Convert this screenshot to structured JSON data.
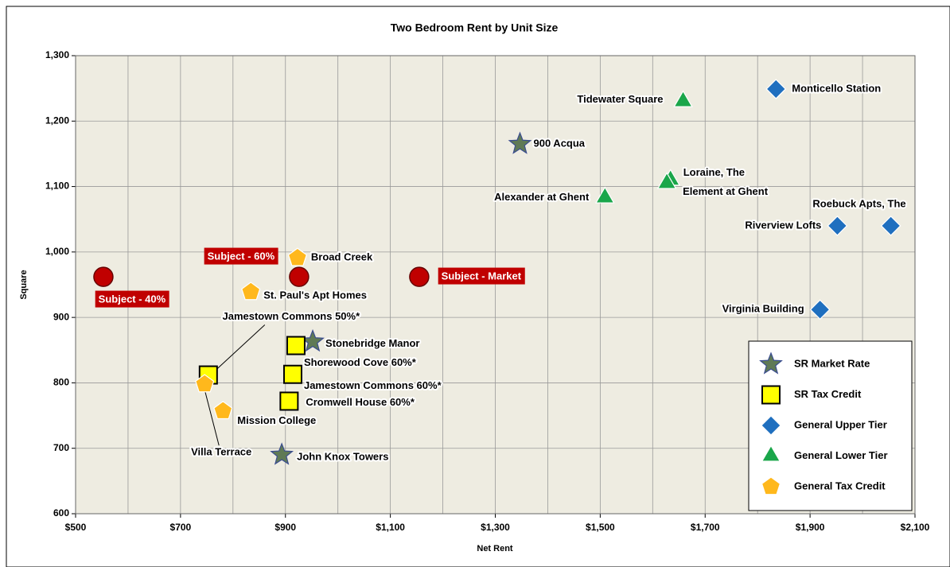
{
  "chart_data": {
    "type": "scatter",
    "title": "Two Bedroom Rent by Unit Size",
    "xlabel": "Net Rent",
    "ylabel": "Square",
    "xlim": [
      500,
      2100
    ],
    "ylim": [
      600,
      1300
    ],
    "xticks": [
      {
        "value": 500,
        "label": "$500"
      },
      {
        "value": 700,
        "label": "$700"
      },
      {
        "value": 900,
        "label": "$900"
      },
      {
        "value": 1100,
        "label": "$1,100"
      },
      {
        "value": 1300,
        "label": "$1,300"
      },
      {
        "value": 1500,
        "label": "$1,500"
      },
      {
        "value": 1700,
        "label": "$1,700"
      },
      {
        "value": 1900,
        "label": "$1,900"
      },
      {
        "value": 2100,
        "label": "$2,100"
      }
    ],
    "xgrid_minor": [
      600,
      800,
      1000,
      1200,
      1400,
      1600,
      1800,
      2000
    ],
    "yticks": [
      600,
      700,
      800,
      900,
      {
        "value": 1000,
        "label": "1,000"
      },
      {
        "value": 1100,
        "label": "1,100"
      },
      {
        "value": 1200,
        "label": "1,200"
      },
      {
        "value": 1300,
        "label": "1,300"
      }
    ],
    "grid": true,
    "legend": "lower right",
    "subject": {
      "color": "#c00000",
      "marker": "circle",
      "x": [
        553,
        926,
        1155
      ],
      "y": [
        962,
        962,
        962
      ],
      "labels": [
        "Subject - 40%",
        "Subject - 60%",
        "Subject - Market"
      ]
    },
    "series": [
      {
        "name": "SR Market Rate",
        "color": "#5f7a55",
        "marker": "star",
        "x": [
          1347,
          952,
          893
        ],
        "y": [
          1165,
          863,
          690
        ],
        "labels": [
          "900 Acqua",
          "Stonebridge Manor",
          "John Knox Towers"
        ]
      },
      {
        "name": "SR Tax Credit",
        "color": "#ffff00",
        "marker": "square",
        "x": [
          753,
          920,
          914,
          907
        ],
        "y": [
          812,
          857,
          813,
          772
        ],
        "labels": [
          "Jamestown Commons 50%*",
          "Shorewood Cove 60%*",
          "Jamestown Commons 60%*",
          "Cromwell House 60%*"
        ]
      },
      {
        "name": "General Upper Tier",
        "color": "#1f6fbf",
        "marker": "diamond",
        "x": [
          1835,
          1952,
          2054,
          1919
        ],
        "y": [
          1249,
          1040,
          1040,
          912
        ],
        "labels": [
          "Monticello Station",
          "Riverview Lofts",
          "Roebuck Apts, The",
          "Virginia Building"
        ]
      },
      {
        "name": "General Lower Tier",
        "color": "#1aa64a",
        "marker": "triangle",
        "x": [
          1658,
          1634,
          1627,
          1509
        ],
        "y": [
          1230,
          1110,
          1105,
          1083
        ],
        "labels": [
          "Tidewater Square",
          "Loraine, The",
          "Element at Ghent",
          "Alexander at Ghent"
        ]
      },
      {
        "name": "General Tax Credit",
        "color": "#ffb81c",
        "marker": "pentagon",
        "x": [
          923,
          834,
          746,
          781
        ],
        "y": [
          991,
          939,
          798,
          757
        ],
        "labels": [
          "Broad Creek",
          "St. Paul's Apt Homes",
          "Villa Terrace",
          "Mission College"
        ]
      }
    ]
  }
}
